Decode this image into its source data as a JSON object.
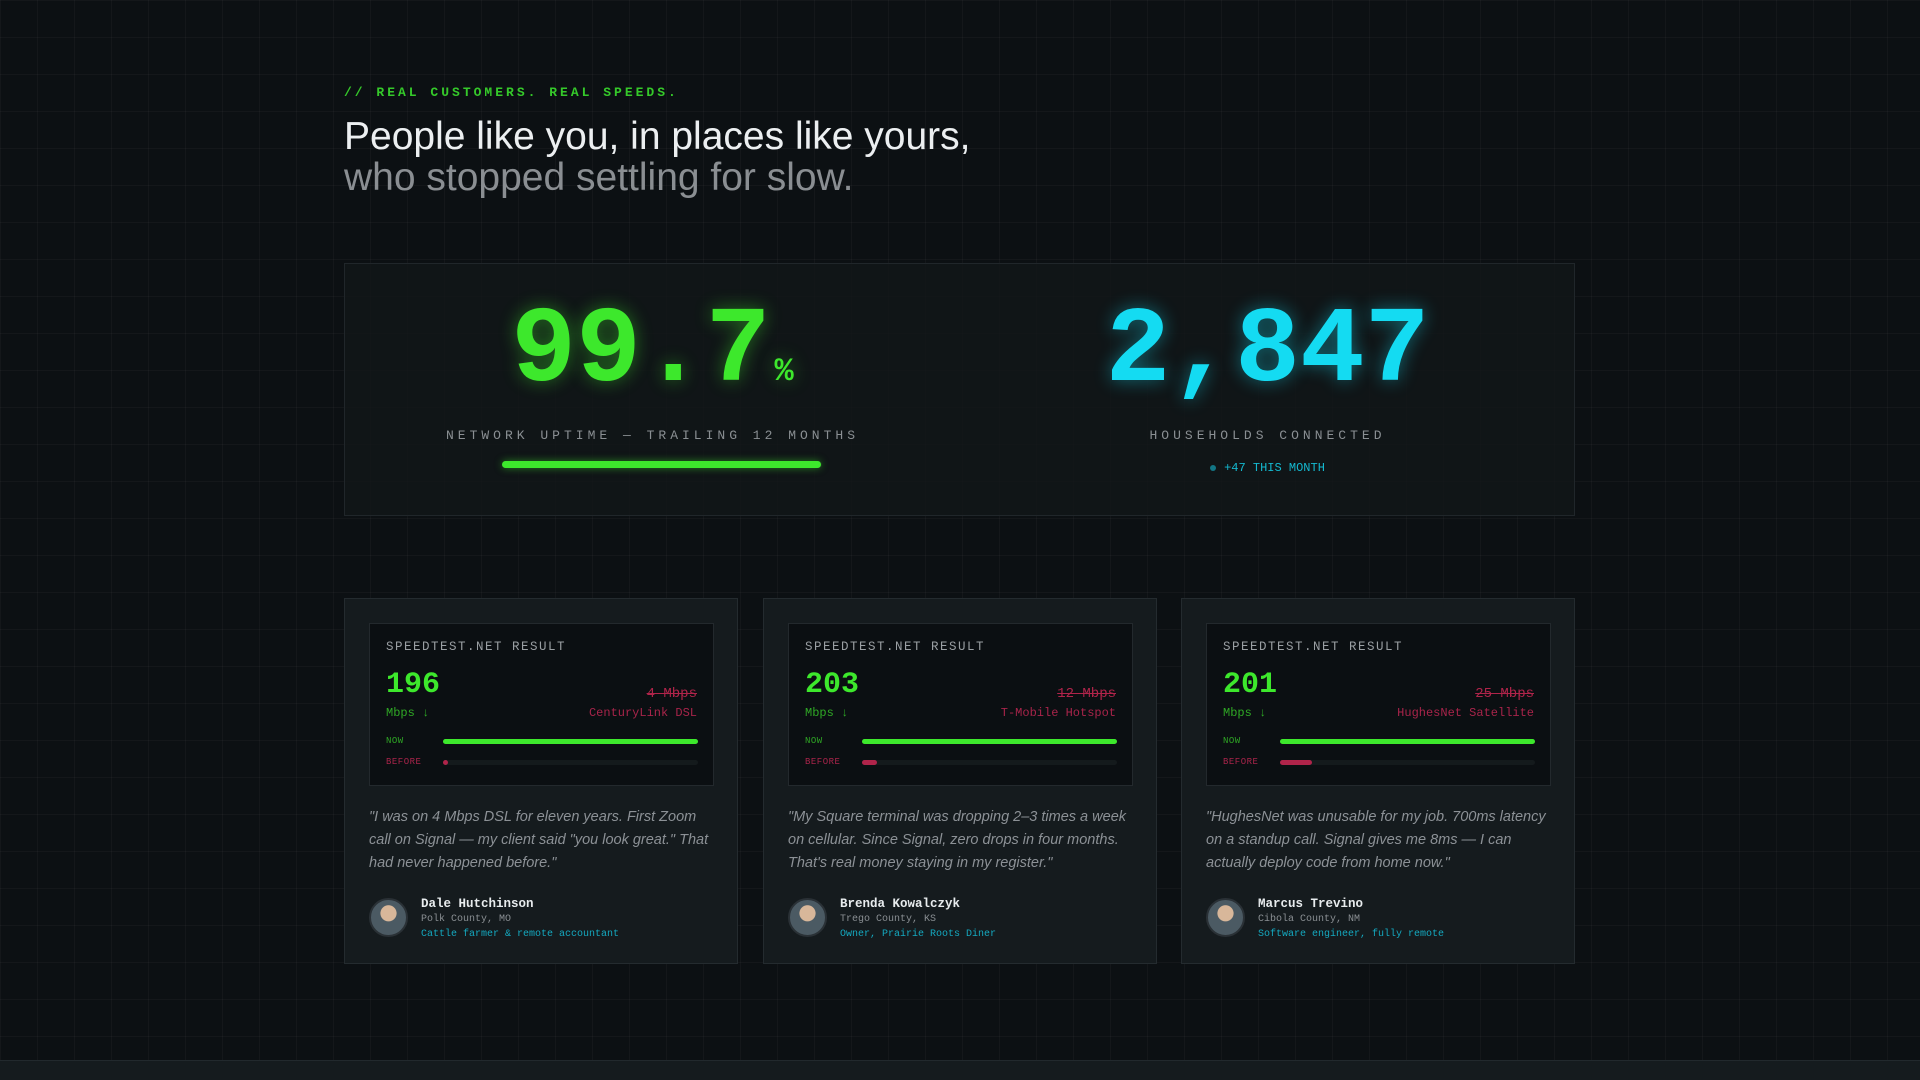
{
  "eyebrow": "// REAL CUSTOMERS. REAL SPEEDS.",
  "heading": {
    "line1": "People like you, in places like yours,",
    "line2": "who stopped settling for slow."
  },
  "stats": {
    "uptime": {
      "value": 99.7,
      "unit": "%",
      "label": "NETWORK UPTIME — TRAILING 12 MONTHS"
    },
    "households": {
      "value": "2,847",
      "label": "HOUSEHOLDS CONNECTED",
      "delta": "+47 THIS MONTH"
    }
  },
  "cards": [
    {
      "result_title": "SPEEDTEST.NET RESULT",
      "speed_now": 196,
      "unit": "Mbps ↓",
      "speed_before": {
        "value": 4,
        "label": "4 Mbps"
      },
      "provider": "CenturyLink DSL",
      "now_label": "NOW",
      "before_label": "BEFORE",
      "quote": "\"I was on 4 Mbps DSL for eleven years. First Zoom call on Signal — my client said \"you look great.\" That had never happened before.\"",
      "name": "Dale Hutchinson",
      "location": "Polk County, MO",
      "role": "Cattle farmer & remote accountant"
    },
    {
      "result_title": "SPEEDTEST.NET RESULT",
      "speed_now": 203,
      "unit": "Mbps ↓",
      "speed_before": {
        "value": 12,
        "label": "12 Mbps"
      },
      "provider": "T-Mobile Hotspot",
      "now_label": "NOW",
      "before_label": "BEFORE",
      "quote": "\"My Square terminal was dropping 2–3 times a week on cellular. Since Signal, zero drops in four months. That's real money staying in my register.\"",
      "name": "Brenda Kowalczyk",
      "location": "Trego County, KS",
      "role": "Owner, Prairie Roots Diner"
    },
    {
      "result_title": "SPEEDTEST.NET RESULT",
      "speed_now": 201,
      "unit": "Mbps ↓",
      "speed_before": {
        "value": 25,
        "label": "25 Mbps"
      },
      "provider": "HughesNet Satellite",
      "now_label": "NOW",
      "before_label": "BEFORE",
      "quote": "\"HughesNet was unusable for my job. 700ms latency on a standup call. Signal gives me 8ms — I can actually deploy code from home now.\"",
      "name": "Marcus Trevino",
      "location": "Cibola County, NM",
      "role": "Software engineer, fully remote"
    }
  ]
}
